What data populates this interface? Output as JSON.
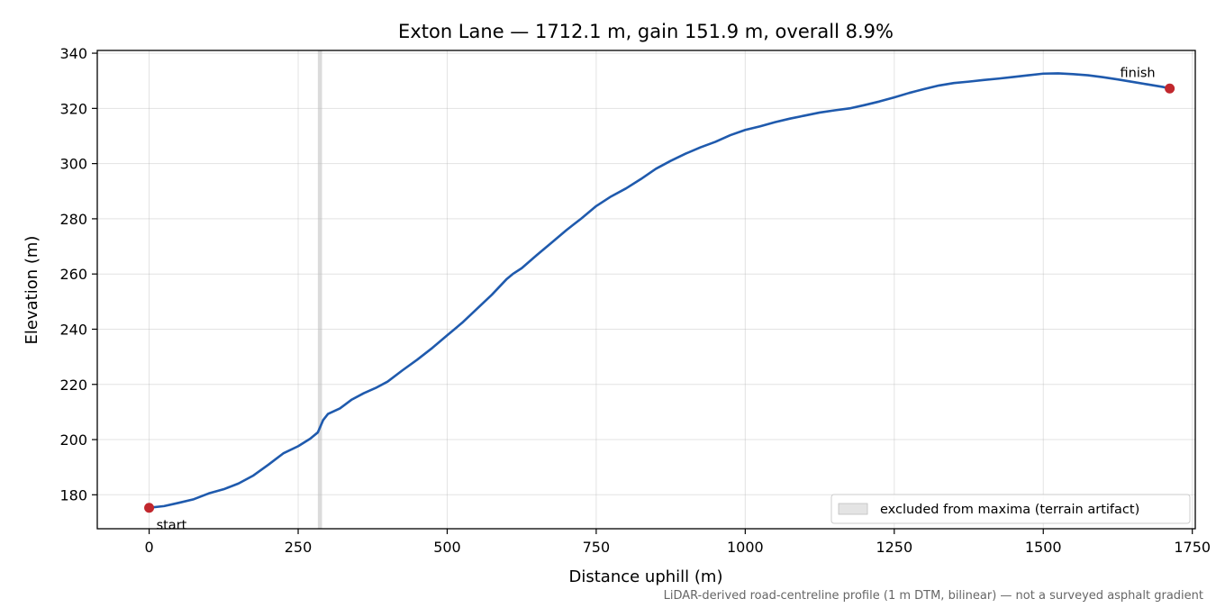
{
  "chart_data": {
    "type": "line",
    "title": "Exton Lane — 1712.1 m, gain 151.9 m, overall 8.9%",
    "xlabel": "Distance uphill (m)",
    "ylabel": "Elevation (m)",
    "xlim": [
      -87,
      1755
    ],
    "ylim": [
      167.7,
      341
    ],
    "xticks": [
      0,
      250,
      500,
      750,
      1000,
      1250,
      1500,
      1750
    ],
    "yticks": [
      180,
      200,
      220,
      240,
      260,
      280,
      300,
      320,
      340
    ],
    "grid": true,
    "legend_position": "lower-right",
    "legend_entries": [
      {
        "label": "excluded from maxima (terrain artifact)",
        "color": "#d9d9d9"
      }
    ],
    "excluded_band": {
      "x": [
        283,
        290
      ],
      "label": "excluded from maxima (terrain artifact)"
    },
    "series": [
      {
        "color": "#1f5aad",
        "points": [
          [
            0,
            175.3
          ],
          [
            25,
            175.9
          ],
          [
            50,
            177.1
          ],
          [
            75,
            178.4
          ],
          [
            100,
            180.5
          ],
          [
            125,
            182.0
          ],
          [
            150,
            184.1
          ],
          [
            175,
            187.0
          ],
          [
            200,
            190.9
          ],
          [
            225,
            195.0
          ],
          [
            250,
            197.6
          ],
          [
            270,
            200.3
          ],
          [
            283,
            202.6
          ],
          [
            292,
            207.1
          ],
          [
            300,
            209.3
          ],
          [
            320,
            211.3
          ],
          [
            340,
            214.5
          ],
          [
            360,
            216.8
          ],
          [
            380,
            218.7
          ],
          [
            400,
            221.0
          ],
          [
            425,
            225.1
          ],
          [
            450,
            229.0
          ],
          [
            475,
            233.2
          ],
          [
            500,
            237.8
          ],
          [
            525,
            242.3
          ],
          [
            550,
            247.4
          ],
          [
            575,
            252.5
          ],
          [
            600,
            258.2
          ],
          [
            610,
            260.0
          ],
          [
            625,
            262.1
          ],
          [
            650,
            266.8
          ],
          [
            675,
            271.3
          ],
          [
            700,
            275.9
          ],
          [
            725,
            280.1
          ],
          [
            750,
            284.6
          ],
          [
            775,
            288.1
          ],
          [
            800,
            291.0
          ],
          [
            825,
            294.4
          ],
          [
            850,
            298.1
          ],
          [
            875,
            301.0
          ],
          [
            900,
            303.6
          ],
          [
            925,
            305.9
          ],
          [
            950,
            307.9
          ],
          [
            975,
            310.3
          ],
          [
            1000,
            312.2
          ],
          [
            1025,
            313.5
          ],
          [
            1050,
            315.0
          ],
          [
            1075,
            316.3
          ],
          [
            1100,
            317.4
          ],
          [
            1125,
            318.5
          ],
          [
            1150,
            319.3
          ],
          [
            1175,
            320.0
          ],
          [
            1200,
            321.2
          ],
          [
            1225,
            322.5
          ],
          [
            1250,
            324.0
          ],
          [
            1275,
            325.6
          ],
          [
            1300,
            327.0
          ],
          [
            1325,
            328.3
          ],
          [
            1350,
            329.2
          ],
          [
            1375,
            329.7
          ],
          [
            1400,
            330.3
          ],
          [
            1425,
            330.8
          ],
          [
            1450,
            331.4
          ],
          [
            1475,
            332.0
          ],
          [
            1500,
            332.6
          ],
          [
            1525,
            332.7
          ],
          [
            1550,
            332.4
          ],
          [
            1575,
            332.0
          ],
          [
            1600,
            331.3
          ],
          [
            1625,
            330.5
          ],
          [
            1650,
            329.6
          ],
          [
            1675,
            328.7
          ],
          [
            1700,
            327.8
          ],
          [
            1712.1,
            327.2
          ]
        ]
      }
    ],
    "markers": [
      {
        "label": "start",
        "x": 0,
        "y": 175.3,
        "color": "#c1272d"
      },
      {
        "label": "finish",
        "x": 1712.1,
        "y": 327.2,
        "color": "#c1272d"
      }
    ],
    "footnote": "LiDAR-derived road-centreline profile (1 m DTM, bilinear) — not a surveyed asphalt gradient"
  }
}
